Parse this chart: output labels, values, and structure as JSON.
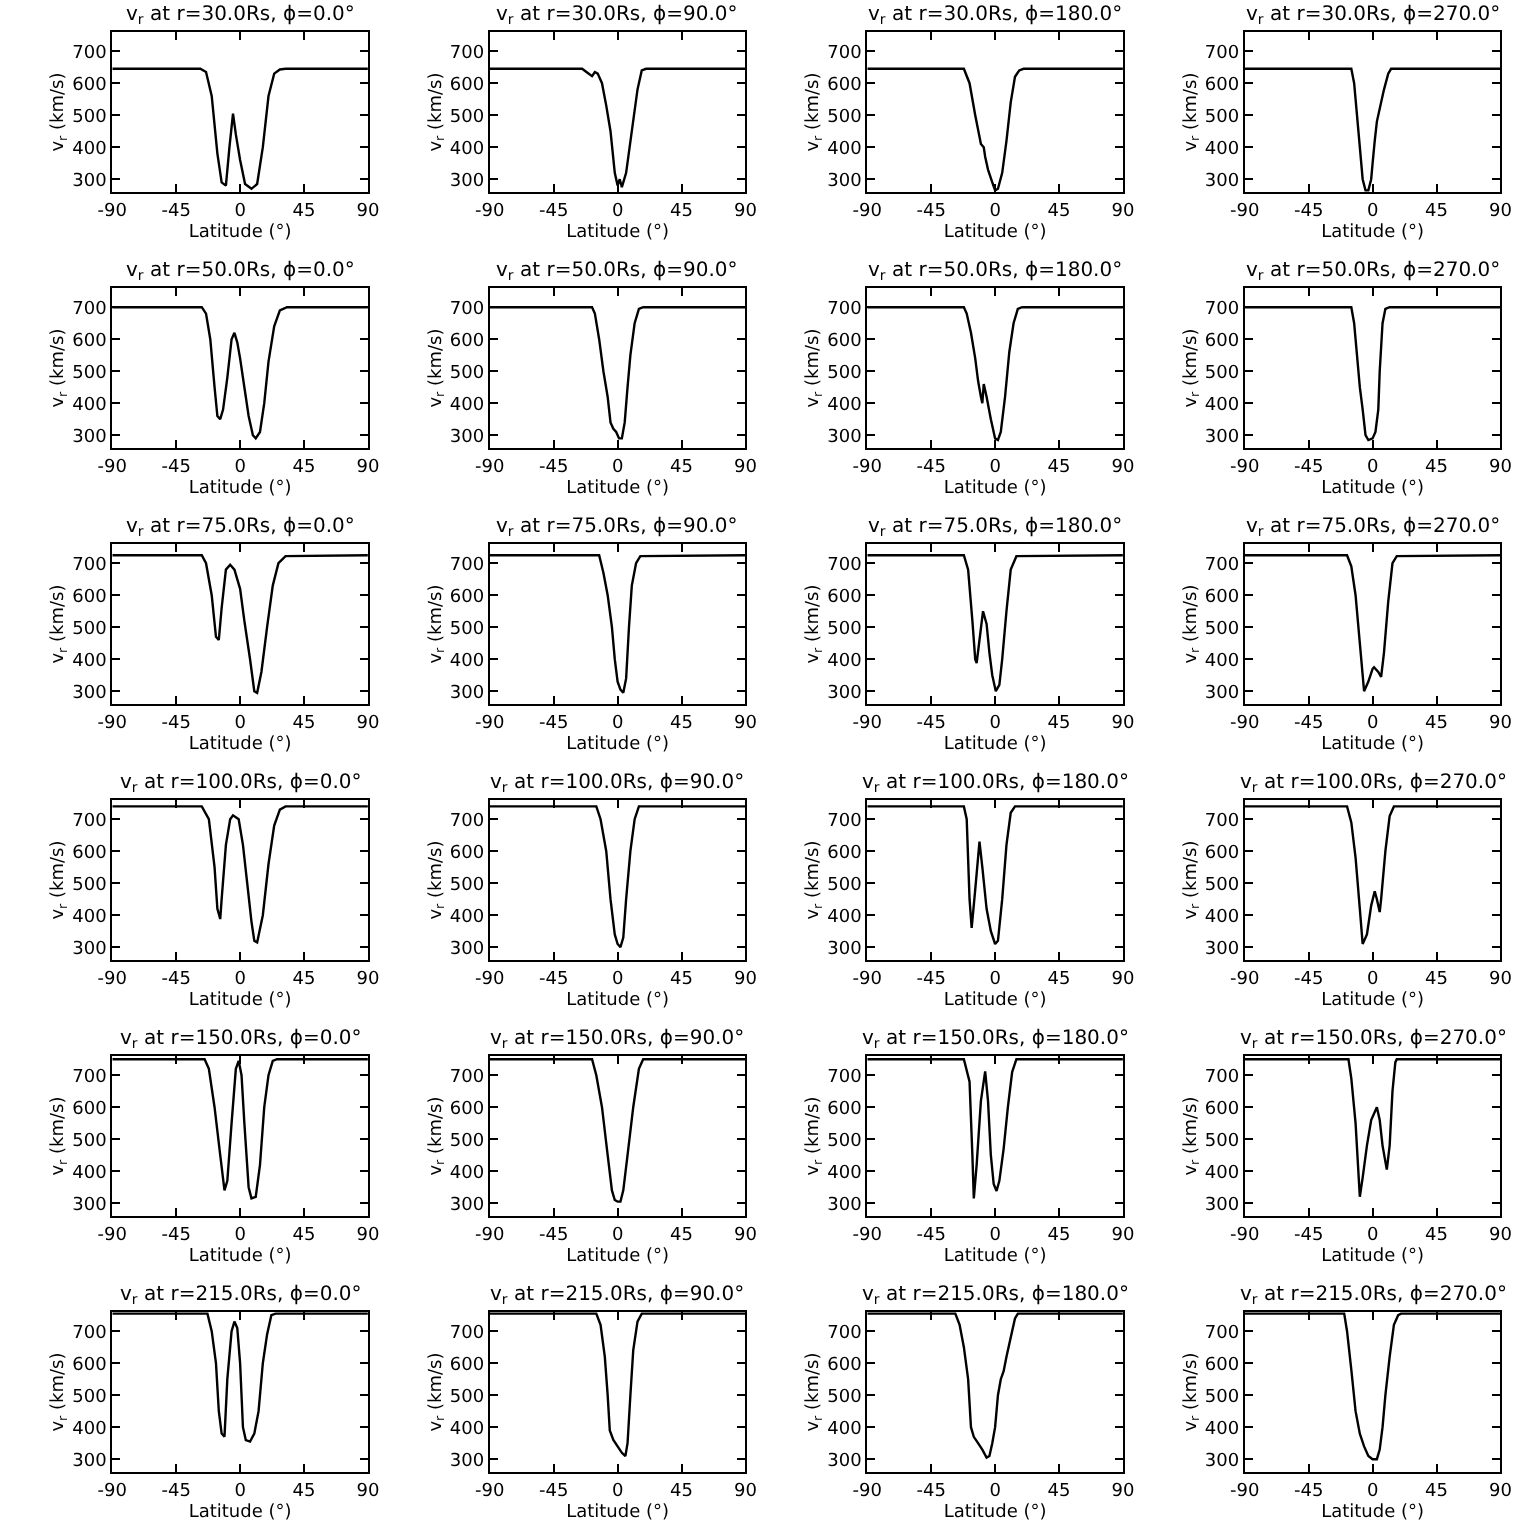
{
  "chart_data": [
    {
      "type": "line",
      "title": "v$_{r}$ at r=30.0Rs, ϕ=0.0°",
      "xlabel": "Latitude (°)",
      "ylabel": "v$_{r}$ (km/s)",
      "color": "#000000",
      "xlim": [
        -90,
        90
      ],
      "ylim": [
        260,
        760
      ],
      "xticks": [
        -90,
        -45,
        0,
        45,
        90
      ],
      "yticks": [
        300,
        400,
        500,
        600,
        700
      ],
      "x": [
        -90,
        -28,
        -24,
        -20,
        -16,
        -13,
        -10,
        -7.5,
        -5,
        -3,
        0,
        3.5,
        8,
        12,
        16,
        20,
        24,
        28,
        32,
        90
      ],
      "values": [
        645,
        645,
        635,
        560,
        380,
        290,
        280,
        400,
        505,
        440,
        360,
        285,
        270,
        285,
        400,
        560,
        630,
        643,
        645,
        645
      ]
    },
    {
      "type": "line",
      "title": "v$_{r}$ at r=30.0Rs, ϕ=90.0°",
      "xlabel": "Latitude (°)",
      "ylabel": "v$_{r}$ (km/s)",
      "color": "#000000",
      "xlim": [
        -90,
        90
      ],
      "ylim": [
        260,
        760
      ],
      "xticks": [
        -90,
        -45,
        0,
        45,
        90
      ],
      "yticks": [
        300,
        400,
        500,
        600,
        700
      ],
      "x": [
        -90,
        -25,
        -21,
        -18,
        -16,
        -14,
        -11,
        -8,
        -5,
        -2,
        0,
        1.5,
        3,
        6,
        10,
        14,
        17,
        20,
        90
      ],
      "values": [
        645,
        645,
        632,
        622,
        635,
        630,
        600,
        530,
        450,
        320,
        280,
        300,
        275,
        320,
        450,
        580,
        640,
        645,
        645
      ]
    },
    {
      "type": "line",
      "title": "v$_{r}$ at r=30.0Rs, ϕ=180.0°",
      "xlabel": "Latitude (°)",
      "ylabel": "v$_{r}$ (km/s)",
      "color": "#000000",
      "xlim": [
        -90,
        90
      ],
      "ylim": [
        260,
        760
      ],
      "xticks": [
        -90,
        -45,
        0,
        45,
        90
      ],
      "yticks": [
        300,
        400,
        500,
        600,
        700
      ],
      "x": [
        -90,
        -22,
        -18,
        -14,
        -10,
        -8,
        -7,
        -5,
        -2,
        0,
        2,
        5,
        8,
        11,
        14,
        17,
        20,
        90
      ],
      "values": [
        645,
        645,
        600,
        500,
        410,
        400,
        370,
        330,
        290,
        265,
        270,
        320,
        420,
        540,
        620,
        640,
        645,
        645
      ]
    },
    {
      "type": "line",
      "title": "v$_{r}$ at r=30.0Rs, ϕ=270.0°",
      "xlabel": "Latitude (°)",
      "ylabel": "v$_{r}$ (km/s)",
      "color": "#000000",
      "xlim": [
        -90,
        90
      ],
      "ylim": [
        260,
        760
      ],
      "xticks": [
        -90,
        -45,
        0,
        45,
        90
      ],
      "yticks": [
        300,
        400,
        500,
        600,
        700
      ],
      "x": [
        -90,
        -15,
        -13,
        -10,
        -7,
        -5,
        -3,
        -1,
        0,
        1.5,
        3,
        5,
        8,
        11,
        13,
        90
      ],
      "values": [
        645,
        645,
        600,
        450,
        300,
        265,
        265,
        300,
        350,
        420,
        480,
        520,
        580,
        630,
        645,
        645
      ]
    },
    {
      "type": "line",
      "title": "v$_{r}$ at r=50.0Rs, ϕ=0.0°",
      "xlabel": "Latitude (°)",
      "ylabel": "v$_{r}$ (km/s)",
      "color": "#000000",
      "xlim": [
        -90,
        90
      ],
      "ylim": [
        260,
        760
      ],
      "xticks": [
        -90,
        -45,
        0,
        45,
        90
      ],
      "yticks": [
        300,
        400,
        500,
        600,
        700
      ],
      "x": [
        -90,
        -27,
        -24,
        -21,
        -18,
        -16,
        -14,
        -12,
        -9,
        -6,
        -4,
        -2,
        0,
        3,
        6,
        9,
        11,
        14,
        17,
        20,
        24,
        28,
        33,
        90
      ],
      "values": [
        700,
        700,
        680,
        600,
        450,
        360,
        350,
        380,
        480,
        600,
        620,
        590,
        540,
        450,
        360,
        300,
        290,
        310,
        400,
        530,
        640,
        690,
        700,
        700
      ]
    },
    {
      "type": "line",
      "title": "v$_{r}$ at r=50.0Rs, ϕ=90.0°",
      "xlabel": "Latitude (°)",
      "ylabel": "v$_{r}$ (km/s)",
      "color": "#000000",
      "xlim": [
        -90,
        90
      ],
      "ylim": [
        260,
        760
      ],
      "xticks": [
        -90,
        -45,
        0,
        45,
        90
      ],
      "yticks": [
        300,
        400,
        500,
        600,
        700
      ],
      "x": [
        -90,
        -18,
        -16,
        -13,
        -10,
        -7,
        -5,
        -3,
        -1,
        1,
        3,
        5,
        7,
        9,
        12,
        15,
        18,
        90
      ],
      "values": [
        700,
        700,
        680,
        600,
        500,
        420,
        340,
        320,
        310,
        290,
        290,
        340,
        450,
        550,
        650,
        695,
        700,
        700
      ]
    },
    {
      "type": "line",
      "title": "v$_{r}$ at r=50.0Rs, ϕ=180.0°",
      "xlabel": "Latitude (°)",
      "ylabel": "v$_{r}$ (km/s)",
      "color": "#000000",
      "xlim": [
        -90,
        90
      ],
      "ylim": [
        260,
        760
      ],
      "xticks": [
        -90,
        -45,
        0,
        45,
        90
      ],
      "yticks": [
        300,
        400,
        500,
        600,
        700
      ],
      "x": [
        -90,
        -22,
        -20,
        -17,
        -14,
        -12,
        -10,
        -9,
        -8,
        -6,
        -3,
        0,
        2,
        4,
        7,
        10,
        13,
        16,
        19,
        90
      ],
      "values": [
        700,
        700,
        680,
        620,
        540,
        470,
        420,
        400,
        460,
        420,
        350,
        290,
        285,
        310,
        420,
        560,
        650,
        695,
        700,
        700
      ]
    },
    {
      "type": "line",
      "title": "v$_{r}$ at r=50.0Rs, ϕ=270.0°",
      "xlabel": "Latitude (°)",
      "ylabel": "v$_{r}$ (km/s)",
      "color": "#000000",
      "xlim": [
        -90,
        90
      ],
      "ylim": [
        260,
        760
      ],
      "xticks": [
        -90,
        -45,
        0,
        45,
        90
      ],
      "yticks": [
        300,
        400,
        500,
        600,
        700
      ],
      "x": [
        -90,
        -15,
        -13,
        -11,
        -9,
        -7,
        -5,
        -3,
        0,
        2,
        4,
        5,
        7,
        9,
        12,
        90
      ],
      "values": [
        700,
        700,
        650,
        550,
        450,
        380,
        300,
        285,
        290,
        310,
        380,
        500,
        650,
        695,
        700,
        700
      ]
    },
    {
      "type": "line",
      "title": "v$_{r}$ at r=75.0Rs, ϕ=0.0°",
      "xlabel": "Latitude (°)",
      "ylabel": "v$_{r}$ (km/s)",
      "color": "#000000",
      "xlim": [
        -90,
        90
      ],
      "ylim": [
        260,
        760
      ],
      "xticks": [
        -90,
        -45,
        0,
        45,
        90
      ],
      "yticks": [
        300,
        400,
        500,
        600,
        700
      ],
      "x": [
        -90,
        -27,
        -24,
        -20,
        -17,
        -15,
        -13,
        -10,
        -7,
        -4,
        0,
        3,
        7,
        10,
        12,
        15,
        19,
        23,
        27,
        32,
        90
      ],
      "values": [
        725,
        725,
        700,
        600,
        470,
        460,
        560,
        680,
        695,
        680,
        620,
        520,
        400,
        300,
        295,
        360,
        500,
        630,
        700,
        722,
        725
      ]
    },
    {
      "type": "line",
      "title": "v$_{r}$ at r=75.0Rs, ϕ=90.0°",
      "xlabel": "Latitude (°)",
      "ylabel": "v$_{r}$ (km/s)",
      "color": "#000000",
      "xlim": [
        -90,
        90
      ],
      "ylim": [
        260,
        760
      ],
      "xticks": [
        -90,
        -45,
        0,
        45,
        90
      ],
      "yticks": [
        300,
        400,
        500,
        600,
        700
      ],
      "x": [
        -90,
        -13,
        -10,
        -7,
        -4,
        -2,
        0,
        2,
        4,
        6,
        8,
        10,
        13,
        16,
        90
      ],
      "values": [
        725,
        725,
        670,
        600,
        500,
        400,
        330,
        305,
        295,
        340,
        500,
        630,
        700,
        722,
        725
      ]
    },
    {
      "type": "line",
      "title": "v$_{r}$ at r=75.0Rs, ϕ=180.0°",
      "xlabel": "Latitude (°)",
      "ylabel": "v$_{r}$ (km/s)",
      "color": "#000000",
      "xlim": [
        -90,
        90
      ],
      "ylim": [
        260,
        760
      ],
      "xticks": [
        -90,
        -45,
        0,
        45,
        90
      ],
      "yticks": [
        300,
        400,
        500,
        600,
        700
      ],
      "x": [
        -90,
        -22,
        -19,
        -16,
        -14,
        -13,
        -11,
        -8.5,
        -6,
        -4,
        -2,
        0.5,
        3,
        5,
        8,
        11,
        15,
        90
      ],
      "values": [
        725,
        725,
        680,
        520,
        400,
        388,
        460,
        550,
        510,
        420,
        350,
        300,
        320,
        400,
        550,
        680,
        722,
        725
      ]
    },
    {
      "type": "line",
      "title": "v$_{r}$ at r=75.0Rs, ϕ=270.0°",
      "xlabel": "Latitude (°)",
      "ylabel": "v$_{r}$ (km/s)",
      "color": "#000000",
      "xlim": [
        -90,
        90
      ],
      "ylim": [
        260,
        760
      ],
      "xticks": [
        -90,
        -45,
        0,
        45,
        90
      ],
      "yticks": [
        300,
        400,
        500,
        600,
        700
      ],
      "x": [
        -90,
        -18,
        -15,
        -12,
        -9,
        -6,
        -3,
        0,
        1,
        4,
        6,
        8,
        11,
        14,
        17,
        90
      ],
      "values": [
        725,
        725,
        690,
        600,
        450,
        300,
        330,
        370,
        375,
        360,
        345,
        420,
        580,
        700,
        722,
        725
      ]
    },
    {
      "type": "line",
      "title": "v$_{r}$ at r=100.0Rs, ϕ=0.0°",
      "xlabel": "Latitude (°)",
      "ylabel": "v$_{r}$ (km/s)",
      "color": "#000000",
      "xlim": [
        -90,
        90
      ],
      "ylim": [
        260,
        760
      ],
      "xticks": [
        -90,
        -45,
        0,
        45,
        90
      ],
      "yticks": [
        300,
        400,
        500,
        600,
        700
      ],
      "x": [
        -90,
        -27,
        -22,
        -18,
        -16,
        -14,
        -13,
        -10,
        -7,
        -5,
        -1,
        2,
        5,
        8,
        10,
        12,
        16,
        20,
        24,
        28,
        32,
        90
      ],
      "values": [
        740,
        740,
        700,
        550,
        420,
        388,
        450,
        620,
        700,
        712,
        700,
        620,
        500,
        380,
        320,
        315,
        400,
        560,
        680,
        730,
        740,
        740
      ]
    },
    {
      "type": "line",
      "title": "v$_{r}$ at r=100.0Rs, ϕ=90.0°",
      "xlabel": "Latitude (°)",
      "ylabel": "v$_{r}$ (km/s)",
      "color": "#000000",
      "xlim": [
        -90,
        90
      ],
      "ylim": [
        260,
        760
      ],
      "xticks": [
        -90,
        -45,
        0,
        45,
        90
      ],
      "yticks": [
        300,
        400,
        500,
        600,
        700
      ],
      "x": [
        -90,
        -15,
        -12,
        -8,
        -5,
        -2,
        0,
        2,
        4,
        6,
        9,
        12,
        15,
        90
      ],
      "values": [
        740,
        740,
        700,
        600,
        450,
        340,
        310,
        300,
        330,
        450,
        600,
        700,
        740,
        740
      ]
    },
    {
      "type": "line",
      "title": "v$_{r}$ at r=100.0Rs, ϕ=180.0°",
      "xlabel": "Latitude (°)",
      "ylabel": "v$_{r}$ (km/s)",
      "color": "#000000",
      "xlim": [
        -90,
        90
      ],
      "ylim": [
        260,
        760
      ],
      "xticks": [
        -90,
        -45,
        0,
        45,
        90
      ],
      "yticks": [
        300,
        400,
        500,
        600,
        700
      ],
      "x": [
        -90,
        -22,
        -20,
        -18,
        -16.5,
        -14,
        -11,
        -9,
        -6,
        -3,
        0,
        2,
        5,
        8,
        11,
        14,
        90
      ],
      "values": [
        740,
        740,
        700,
        450,
        360,
        480,
        630,
        550,
        420,
        350,
        310,
        320,
        450,
        620,
        720,
        740,
        740
      ]
    },
    {
      "type": "line",
      "title": "v$_{r}$ at r=100.0Rs, ϕ=270.0°",
      "xlabel": "Latitude (°)",
      "ylabel": "v$_{r}$ (km/s)",
      "color": "#000000",
      "xlim": [
        -90,
        90
      ],
      "ylim": [
        260,
        760
      ],
      "xticks": [
        -90,
        -45,
        0,
        45,
        90
      ],
      "yticks": [
        300,
        400,
        500,
        600,
        700
      ],
      "x": [
        -90,
        -18,
        -15,
        -12,
        -9,
        -7,
        -4,
        -1,
        1.5,
        3,
        5,
        6,
        9,
        12,
        15,
        90
      ],
      "values": [
        740,
        740,
        690,
        580,
        420,
        310,
        340,
        430,
        475,
        450,
        410,
        450,
        600,
        710,
        740,
        740
      ]
    },
    {
      "type": "line",
      "title": "v$_{r}$ at r=150.0Rs, ϕ=0.0°",
      "xlabel": "Latitude (°)",
      "ylabel": "v$_{r}$ (km/s)",
      "color": "#000000",
      "xlim": [
        -90,
        90
      ],
      "ylim": [
        260,
        760
      ],
      "xticks": [
        -90,
        -45,
        0,
        45,
        90
      ],
      "yticks": [
        300,
        400,
        500,
        600,
        700
      ],
      "x": [
        -90,
        -25,
        -22,
        -18,
        -14,
        -11,
        -9,
        -6,
        -3,
        -1,
        1,
        3,
        6,
        8,
        11,
        14,
        17,
        20,
        23,
        26,
        90
      ],
      "values": [
        750,
        750,
        720,
        600,
        450,
        340,
        370,
        550,
        720,
        745,
        700,
        550,
        350,
        315,
        320,
        420,
        600,
        700,
        745,
        750,
        750
      ]
    },
    {
      "type": "line",
      "title": "v$_{r}$ at r=150.0Rs, ϕ=90.0°",
      "xlabel": "Latitude (°)",
      "ylabel": "v$_{r}$ (km/s)",
      "color": "#000000",
      "xlim": [
        -90,
        90
      ],
      "ylim": [
        260,
        760
      ],
      "xticks": [
        -90,
        -45,
        0,
        45,
        90
      ],
      "yticks": [
        300,
        400,
        500,
        600,
        700
      ],
      "x": [
        -90,
        -18,
        -15,
        -11,
        -7,
        -4,
        -2,
        0,
        2,
        4,
        7,
        11,
        15,
        18,
        90
      ],
      "values": [
        750,
        750,
        700,
        600,
        450,
        340,
        310,
        305,
        305,
        340,
        450,
        600,
        720,
        750,
        750
      ]
    },
    {
      "type": "line",
      "title": "v$_{r}$ at r=150.0Rs, ϕ=180.0°",
      "xlabel": "Latitude (°)",
      "ylabel": "v$_{r}$ (km/s)",
      "color": "#000000",
      "xlim": [
        -90,
        90
      ],
      "ylim": [
        260,
        760
      ],
      "xticks": [
        -90,
        -45,
        0,
        45,
        90
      ],
      "yticks": [
        300,
        400,
        500,
        600,
        700
      ],
      "x": [
        -90,
        -22,
        -18,
        -16,
        -15,
        -13,
        -10,
        -7,
        -5,
        -3,
        -1,
        1,
        3,
        6,
        9,
        12,
        15,
        90
      ],
      "values": [
        750,
        750,
        680,
        450,
        315,
        420,
        620,
        712,
        620,
        450,
        360,
        338,
        370,
        470,
        600,
        710,
        750,
        750
      ]
    },
    {
      "type": "line",
      "title": "v$_{r}$ at r=150.0Rs, ϕ=270.0°",
      "xlabel": "Latitude (°)",
      "ylabel": "v$_{r}$ (km/s)",
      "color": "#000000",
      "xlim": [
        -90,
        90
      ],
      "ylim": [
        260,
        760
      ],
      "xticks": [
        -90,
        -45,
        0,
        45,
        90
      ],
      "yticks": [
        300,
        400,
        500,
        600,
        700
      ],
      "x": [
        -90,
        -17,
        -15,
        -12,
        -9,
        -7,
        -4,
        -1,
        3,
        5,
        7,
        10,
        12,
        14,
        16,
        17,
        90
      ],
      "values": [
        750,
        750,
        690,
        550,
        320,
        380,
        480,
        560,
        600,
        560,
        480,
        405,
        480,
        650,
        740,
        750,
        750
      ]
    },
    {
      "type": "line",
      "title": "v$_{r}$ at r=215.0Rs, ϕ=0.0°",
      "xlabel": "Latitude (°)",
      "ylabel": "v$_{r}$ (km/s)",
      "color": "#000000",
      "xlim": [
        -90,
        90
      ],
      "ylim": [
        260,
        760
      ],
      "xticks": [
        -90,
        -45,
        0,
        45,
        90
      ],
      "yticks": [
        300,
        400,
        500,
        600,
        700
      ],
      "x": [
        -90,
        -23,
        -20,
        -17,
        -15,
        -13,
        -11,
        -9,
        -6,
        -4,
        -2,
        0,
        2,
        4,
        7,
        10,
        13,
        16,
        19,
        22,
        25,
        90
      ],
      "values": [
        755,
        755,
        700,
        600,
        450,
        380,
        370,
        550,
        700,
        730,
        710,
        600,
        400,
        360,
        355,
        380,
        450,
        600,
        690,
        750,
        755,
        755
      ]
    },
    {
      "type": "line",
      "title": "v$_{r}$ at r=215.0Rs, ϕ=90.0°",
      "xlabel": "Latitude (°)",
      "ylabel": "v$_{r}$ (km/s)",
      "color": "#000000",
      "xlim": [
        -90,
        90
      ],
      "ylim": [
        260,
        760
      ],
      "xticks": [
        -90,
        -45,
        0,
        45,
        90
      ],
      "yticks": [
        300,
        400,
        500,
        600,
        700
      ],
      "x": [
        -90,
        -15,
        -12,
        -9,
        -7,
        -5.5,
        -3,
        0,
        3,
        5.5,
        7,
        9,
        11,
        14,
        17,
        90
      ],
      "values": [
        755,
        755,
        720,
        620,
        500,
        390,
        360,
        340,
        320,
        310,
        350,
        500,
        640,
        730,
        755,
        755
      ]
    },
    {
      "type": "line",
      "title": "v$_{r}$ at r=215.0Rs, ϕ=180.0°",
      "xlabel": "Latitude (°)",
      "ylabel": "v$_{r}$ (km/s)",
      "color": "#000000",
      "xlim": [
        -90,
        90
      ],
      "ylim": [
        260,
        760
      ],
      "xticks": [
        -90,
        -45,
        0,
        45,
        90
      ],
      "yticks": [
        300,
        400,
        500,
        600,
        700
      ],
      "x": [
        -90,
        -28,
        -25,
        -22,
        -19,
        -17,
        -15,
        -12,
        -9,
        -6,
        -4,
        -2,
        0,
        2,
        4,
        6,
        8,
        11,
        14,
        16,
        90
      ],
      "values": [
        755,
        755,
        720,
        650,
        550,
        400,
        370,
        350,
        330,
        305,
        310,
        350,
        400,
        500,
        550,
        575,
        620,
        680,
        740,
        755,
        755
      ]
    },
    {
      "type": "line",
      "title": "v$_{r}$ at r=215.0Rs, ϕ=270.0°",
      "xlabel": "Latitude (°)",
      "ylabel": "v$_{r}$ (km/s)",
      "color": "#000000",
      "xlim": [
        -90,
        90
      ],
      "ylim": [
        260,
        760
      ],
      "xticks": [
        -90,
        -45,
        0,
        45,
        90
      ],
      "yticks": [
        300,
        400,
        500,
        600,
        700
      ],
      "x": [
        -90,
        -20,
        -18,
        -15,
        -12,
        -9,
        -6,
        -3,
        0,
        3,
        5,
        7,
        9,
        12,
        15,
        18,
        20,
        90
      ],
      "values": [
        755,
        755,
        700,
        580,
        450,
        380,
        340,
        310,
        300,
        300,
        330,
        400,
        500,
        620,
        720,
        750,
        755,
        755
      ]
    }
  ]
}
